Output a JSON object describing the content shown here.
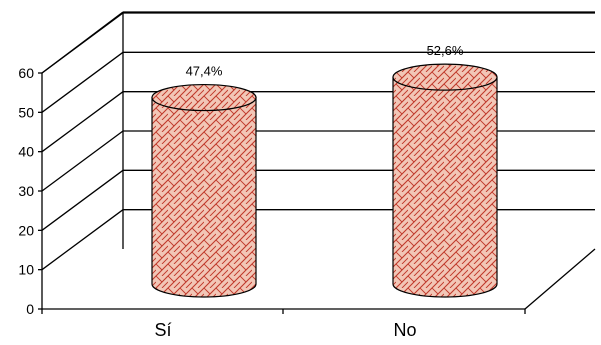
{
  "chart_data": {
    "type": "bar",
    "style": "3d-cylinder",
    "categories": [
      "Sí",
      "No"
    ],
    "values": [
      47.4,
      52.6
    ],
    "data_labels": [
      "47,4%",
      "52,6%"
    ],
    "ylim": [
      0,
      60
    ],
    "yticks": [
      0,
      10,
      20,
      30,
      40,
      50,
      60
    ],
    "ytick_labels": [
      "0",
      "10",
      "20",
      "30",
      "40",
      "50",
      "60"
    ],
    "grid": true,
    "legend": "none",
    "colors": {
      "bar_fill": "#f2c6b6",
      "bar_pattern": "#c0392b",
      "line": "#000000"
    }
  }
}
